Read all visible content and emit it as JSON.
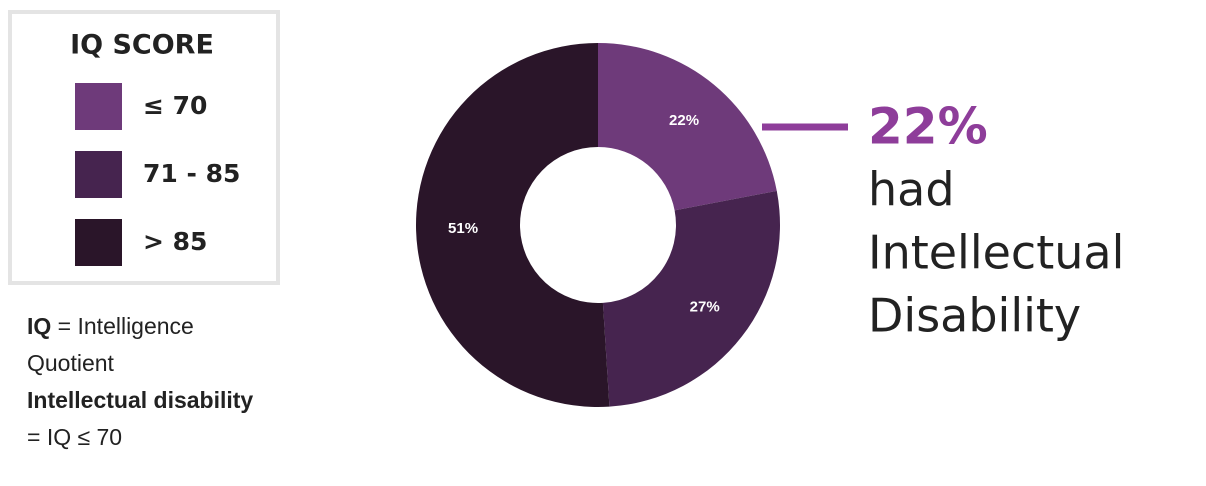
{
  "chart_data": {
    "type": "donut",
    "legend_title": "IQ SCORE",
    "categories": [
      "≤ 70",
      "71 - 85",
      "> 85"
    ],
    "values": [
      22,
      27,
      51
    ],
    "value_labels": [
      "22%",
      "27%",
      "51%"
    ],
    "colors": [
      "#6e3a7a",
      "#46244f",
      "#2a1529"
    ],
    "annotation": {
      "highlight": "22%",
      "lines": [
        "had",
        "Intellectual",
        "Disability"
      ],
      "color": "#8e3d9a"
    },
    "notes": [
      {
        "term": "IQ",
        "definition": "= Intelligence Quotient"
      },
      {
        "term": "Intellectual disability",
        "definition": "= IQ ≤ 70"
      }
    ]
  }
}
